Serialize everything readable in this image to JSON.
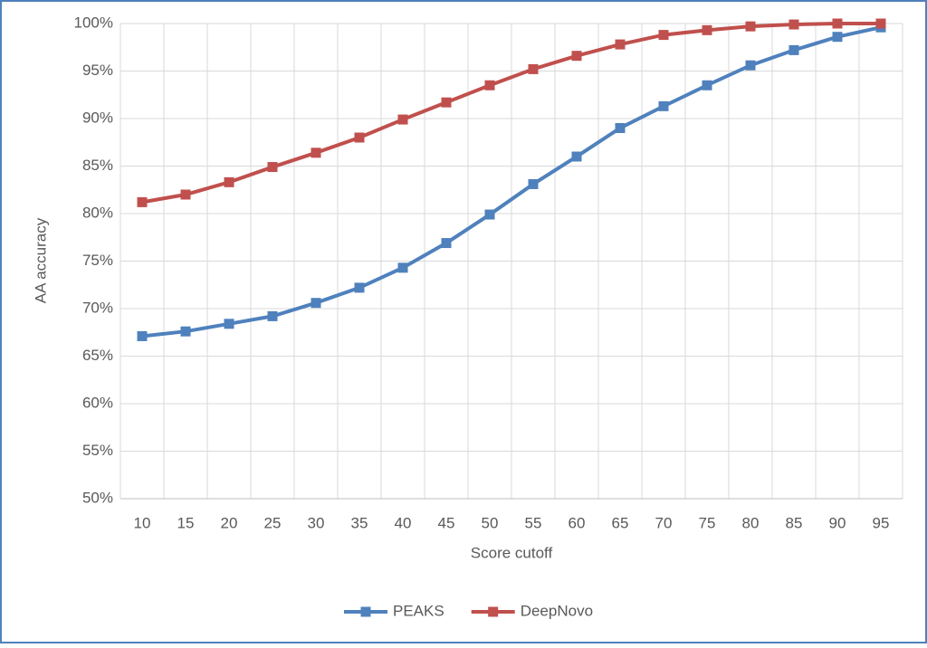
{
  "chart_data": {
    "type": "line",
    "x_label": "Score cutoff",
    "y_label": "AA accuracy",
    "categories": [
      "10",
      "15",
      "20",
      "25",
      "30",
      "35",
      "40",
      "45",
      "50",
      "55",
      "60",
      "65",
      "70",
      "75",
      "80",
      "85",
      "90",
      "95"
    ],
    "series": [
      {
        "name": "PEAKS",
        "color": "#4f81bd",
        "values": [
          67.1,
          67.6,
          68.4,
          69.2,
          70.6,
          72.2,
          74.3,
          76.9,
          79.9,
          83.1,
          86.0,
          89.0,
          91.3,
          93.5,
          95.6,
          97.2,
          98.6,
          99.6
        ]
      },
      {
        "name": "DeepNovo",
        "color": "#c0504d",
        "values": [
          81.2,
          82.0,
          83.3,
          84.9,
          86.4,
          88.0,
          89.9,
          91.7,
          93.5,
          95.2,
          96.6,
          97.8,
          98.8,
          99.3,
          99.7,
          99.9,
          100,
          100
        ]
      }
    ],
    "ylim": [
      50,
      100
    ],
    "yticks": [
      {
        "value": 50,
        "label": "50%"
      },
      {
        "value": 55,
        "label": "55%"
      },
      {
        "value": 60,
        "label": "60%"
      },
      {
        "value": 65,
        "label": "65%"
      },
      {
        "value": 70,
        "label": "70%"
      },
      {
        "value": 75,
        "label": "75%"
      },
      {
        "value": 80,
        "label": "80%"
      },
      {
        "value": 85,
        "label": "85%"
      },
      {
        "value": 90,
        "label": "90%"
      },
      {
        "value": 95,
        "label": "95%"
      },
      {
        "value": 100,
        "label": "100%"
      }
    ],
    "grid": true,
    "legend": "bottom"
  }
}
